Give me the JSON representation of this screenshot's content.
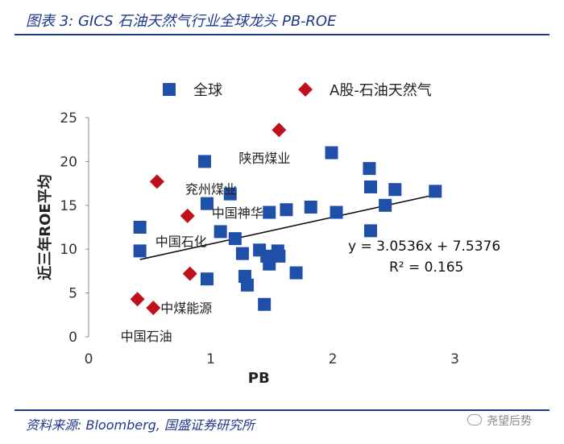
{
  "figure_title": "图表 3:  GICS 石油天然气行业全球龙头 PB-ROE",
  "source": "资料来源: Bloomberg, 国盛证券研究所",
  "watermark": "尧望后势",
  "colors": {
    "global": "#1f4fa8",
    "ashare": "#c0101c",
    "trend": "#111111",
    "title": "#1f3a8a"
  },
  "chart_data": {
    "type": "scatter",
    "xlabel": "PB",
    "ylabel": "近三年ROE平均",
    "xlim": [
      0,
      3
    ],
    "ylim": [
      0,
      25
    ],
    "xticks": [
      0,
      1,
      2,
      3
    ],
    "yticks": [
      0,
      5,
      10,
      15,
      20,
      25
    ],
    "grid": false,
    "legend_position": "top",
    "series": [
      {
        "name": "全球",
        "marker": "square",
        "points": [
          [
            0.42,
            12.5
          ],
          [
            0.42,
            9.8
          ],
          [
            0.95,
            20.0
          ],
          [
            0.97,
            15.2
          ],
          [
            0.97,
            6.6
          ],
          [
            1.08,
            12.0
          ],
          [
            1.16,
            16.3
          ],
          [
            1.2,
            11.2
          ],
          [
            1.26,
            9.5
          ],
          [
            1.28,
            6.9
          ],
          [
            1.3,
            5.9
          ],
          [
            1.4,
            9.9
          ],
          [
            1.44,
            3.7
          ],
          [
            1.46,
            9.2
          ],
          [
            1.48,
            8.3
          ],
          [
            1.48,
            14.2
          ],
          [
            1.55,
            9.8
          ],
          [
            1.56,
            9.2
          ],
          [
            1.62,
            14.5
          ],
          [
            1.7,
            7.3
          ],
          [
            1.82,
            14.8
          ],
          [
            1.99,
            21.0
          ],
          [
            2.03,
            14.2
          ],
          [
            2.3,
            19.2
          ],
          [
            2.31,
            17.1
          ],
          [
            2.31,
            12.1
          ],
          [
            2.43,
            15.0
          ],
          [
            2.51,
            16.8
          ],
          [
            2.84,
            16.6
          ]
        ]
      },
      {
        "name": "A股-石油天然气",
        "marker": "diamond",
        "points": [
          [
            0.4,
            4.3
          ],
          [
            0.53,
            3.3
          ],
          [
            0.56,
            17.7
          ],
          [
            0.81,
            13.8
          ],
          [
            0.83,
            7.2
          ],
          [
            1.56,
            23.6
          ]
        ]
      }
    ],
    "point_labels": [
      {
        "text": "陕西煤业",
        "at": [
          1.56,
          23.6
        ]
      },
      {
        "text": "兖州煤业",
        "at": [
          0.56,
          17.7
        ]
      },
      {
        "text": "中国神华",
        "at": [
          0.81,
          13.8
        ]
      },
      {
        "text": "中国石化",
        "at": [
          0.83,
          7.2
        ]
      },
      {
        "text": "中煤能源",
        "at": [
          0.53,
          3.3
        ]
      },
      {
        "text": "中国石油",
        "at": [
          0.4,
          4.3
        ]
      }
    ],
    "trendline": {
      "slope": 3.0536,
      "intercept": 7.5376,
      "x_range": [
        0.42,
        2.84
      ]
    },
    "equation": "y = 3.0536x + 7.5376",
    "r_squared": "R² = 0.165"
  }
}
